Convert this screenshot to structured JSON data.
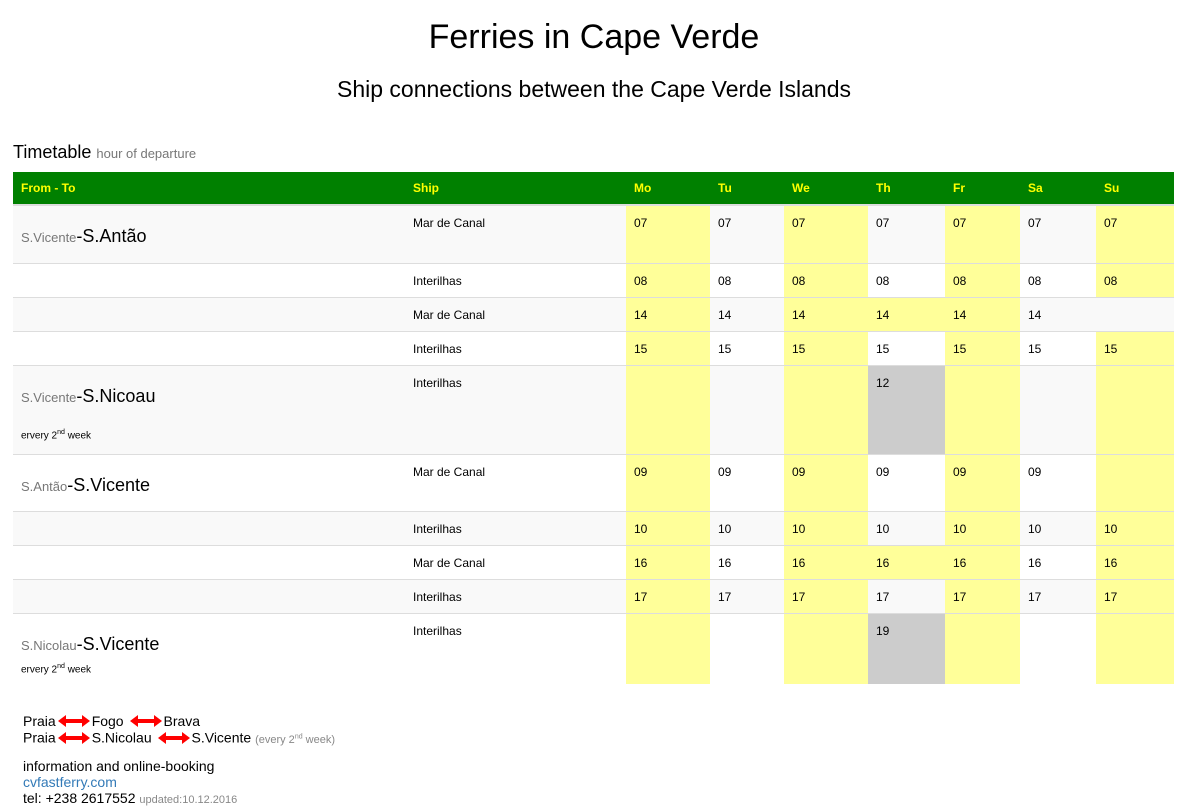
{
  "header": {
    "title": "Ferries in Cape Verde",
    "subtitle": "Ship connections between the Cape Verde Islands"
  },
  "timetable": {
    "label": "Timetable",
    "sublabel": "hour of departure"
  },
  "columns": [
    "From - To",
    "Ship",
    "Mo",
    "Tu",
    "We",
    "Th",
    "Fr",
    "Sa",
    "Su"
  ],
  "colors": {
    "header_bg": "#008000",
    "header_text": "#ffff00",
    "highlight": "#ffff99",
    "special": "#cccccc",
    "arrow": "#ff0000",
    "link": "#337ab7"
  },
  "rows": [
    {
      "from": "S.Vicente",
      "to": "-S.Antão",
      "note": "",
      "ship": "Mar de Canal",
      "days": [
        [
          "07",
          "y"
        ],
        [
          "07",
          ""
        ],
        [
          "07",
          "y"
        ],
        [
          "07",
          ""
        ],
        [
          "07",
          "y"
        ],
        [
          "07",
          ""
        ],
        [
          "07",
          "y"
        ]
      ]
    },
    {
      "from": "",
      "to": "",
      "note": "",
      "ship": "Interilhas",
      "days": [
        [
          "08",
          "y"
        ],
        [
          "08",
          ""
        ],
        [
          "08",
          "y"
        ],
        [
          "08",
          ""
        ],
        [
          "08",
          "y"
        ],
        [
          "08",
          ""
        ],
        [
          "08",
          "y"
        ]
      ]
    },
    {
      "from": "",
      "to": "",
      "note": "",
      "ship": "Mar de Canal",
      "days": [
        [
          "14",
          "y"
        ],
        [
          "14",
          ""
        ],
        [
          "14",
          "y"
        ],
        [
          "14",
          "y"
        ],
        [
          "14",
          "y"
        ],
        [
          "14",
          ""
        ],
        [
          "",
          ""
        ]
      ]
    },
    {
      "from": "",
      "to": "",
      "note": "",
      "ship": "Interilhas",
      "days": [
        [
          "15",
          "y"
        ],
        [
          "15",
          ""
        ],
        [
          "15",
          "y"
        ],
        [
          "15",
          ""
        ],
        [
          "15",
          "y"
        ],
        [
          "15",
          ""
        ],
        [
          "15",
          "y"
        ]
      ]
    },
    {
      "from": "S.Vicente",
      "to": "-S.Nicoau",
      "note": "ervery 2",
      "note_sup": "nd",
      "note_end": " week",
      "ship": "Interilhas",
      "days": [
        [
          "",
          "y"
        ],
        [
          "",
          ""
        ],
        [
          "",
          "y"
        ],
        [
          "12",
          "g"
        ],
        [
          "",
          "y"
        ],
        [
          "",
          ""
        ],
        [
          "",
          "y"
        ]
      ]
    },
    {
      "from": "S.Antão",
      "to": "-S.Vicente",
      "note": "",
      "ship": "Mar de Canal",
      "days": [
        [
          "09",
          "y"
        ],
        [
          "09",
          ""
        ],
        [
          "09",
          "y"
        ],
        [
          "09",
          ""
        ],
        [
          "09",
          "y"
        ],
        [
          "09",
          ""
        ],
        [
          "",
          "y"
        ]
      ]
    },
    {
      "from": "",
      "to": "",
      "note": "",
      "ship": "Interilhas",
      "days": [
        [
          "10",
          "y"
        ],
        [
          "10",
          ""
        ],
        [
          "10",
          "y"
        ],
        [
          "10",
          ""
        ],
        [
          "10",
          "y"
        ],
        [
          "10",
          ""
        ],
        [
          "10",
          "y"
        ]
      ]
    },
    {
      "from": "",
      "to": "",
      "note": "",
      "ship": "Mar de Canal",
      "days": [
        [
          "16",
          "y"
        ],
        [
          "16",
          ""
        ],
        [
          "16",
          "y"
        ],
        [
          "16",
          "y"
        ],
        [
          "16",
          "y"
        ],
        [
          "16",
          ""
        ],
        [
          "16",
          "y"
        ]
      ]
    },
    {
      "from": "",
      "to": "",
      "note": "",
      "ship": "Interilhas",
      "days": [
        [
          "17",
          "y"
        ],
        [
          "17",
          ""
        ],
        [
          "17",
          "y"
        ],
        [
          "17",
          ""
        ],
        [
          "17",
          "y"
        ],
        [
          "17",
          ""
        ],
        [
          "17",
          "y"
        ]
      ]
    },
    {
      "from": "S.Nicolau",
      "to": "-S.Vicente",
      "note": "ervery 2",
      "note_sup": "nd",
      "note_end": " week",
      "ship": "Interilhas",
      "days": [
        [
          "",
          "y"
        ],
        [
          "",
          ""
        ],
        [
          "",
          "y"
        ],
        [
          "19",
          "g"
        ],
        [
          "",
          "y"
        ],
        [
          "",
          ""
        ],
        [
          "",
          "y"
        ]
      ]
    }
  ],
  "footer": {
    "line1": [
      "Praia",
      "Fogo",
      "Brava"
    ],
    "line2": [
      "Praia",
      "S.Nicolau",
      "S.Vicente"
    ],
    "line2_note": "(every 2",
    "line2_note_sup": "nd",
    "line2_note_end": " week)",
    "info": "information and online-booking",
    "link": "cvfastferry.com",
    "tel": "tel: +238 2617552",
    "updated": "updated:10.12.2016"
  }
}
